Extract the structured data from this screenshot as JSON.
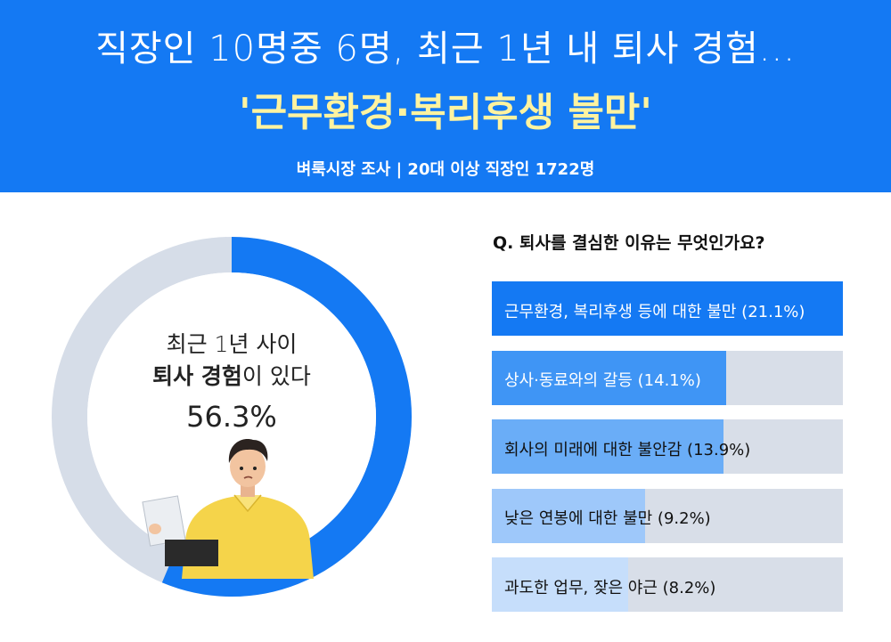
{
  "header": {
    "headline": "직장인 10명중 6명, 최근 1년 내 퇴사 경험...",
    "highlight": "'근무환경·복리후생 불만'",
    "subtitle": "벼룩시장 조사 | 20대 이상 직장인 1722명"
  },
  "colors": {
    "header_bg": "#1479f3",
    "highlight": "#fff3a0",
    "bar_track": "#d8dee8",
    "donut_rest": "#d6dde8"
  },
  "donut": {
    "line1": "최근 1년 사이",
    "line2_bold": "퇴사 경험",
    "line2_rest": "이 있다",
    "value_label": "56.3%",
    "value": 56.3
  },
  "chart_data": {
    "type": "bar",
    "title": "Q. 퇴사를 결심한 이유는 무엇인가요?",
    "categories": [
      "근무환경, 복리후생 등에 대한 불만 (21.1%)",
      "상사·동료와의 갈등 (14.1%)",
      "회사의 미래에 대한 불안감 (13.9%)",
      "낮은 연봉에 대한 불만 (9.2%)",
      "과도한 업무, 잦은 야근 (8.2%)"
    ],
    "values": [
      21.1,
      14.1,
      13.9,
      9.2,
      8.2
    ],
    "bar_colors": [
      "#1479f3",
      "#3f95f5",
      "#6aadf7",
      "#9ec8fa",
      "#c6defb"
    ],
    "label_colors": [
      "#ffffff",
      "#ffffff",
      "#111111",
      "#111111",
      "#111111"
    ],
    "xlim": [
      0,
      21.1
    ]
  }
}
